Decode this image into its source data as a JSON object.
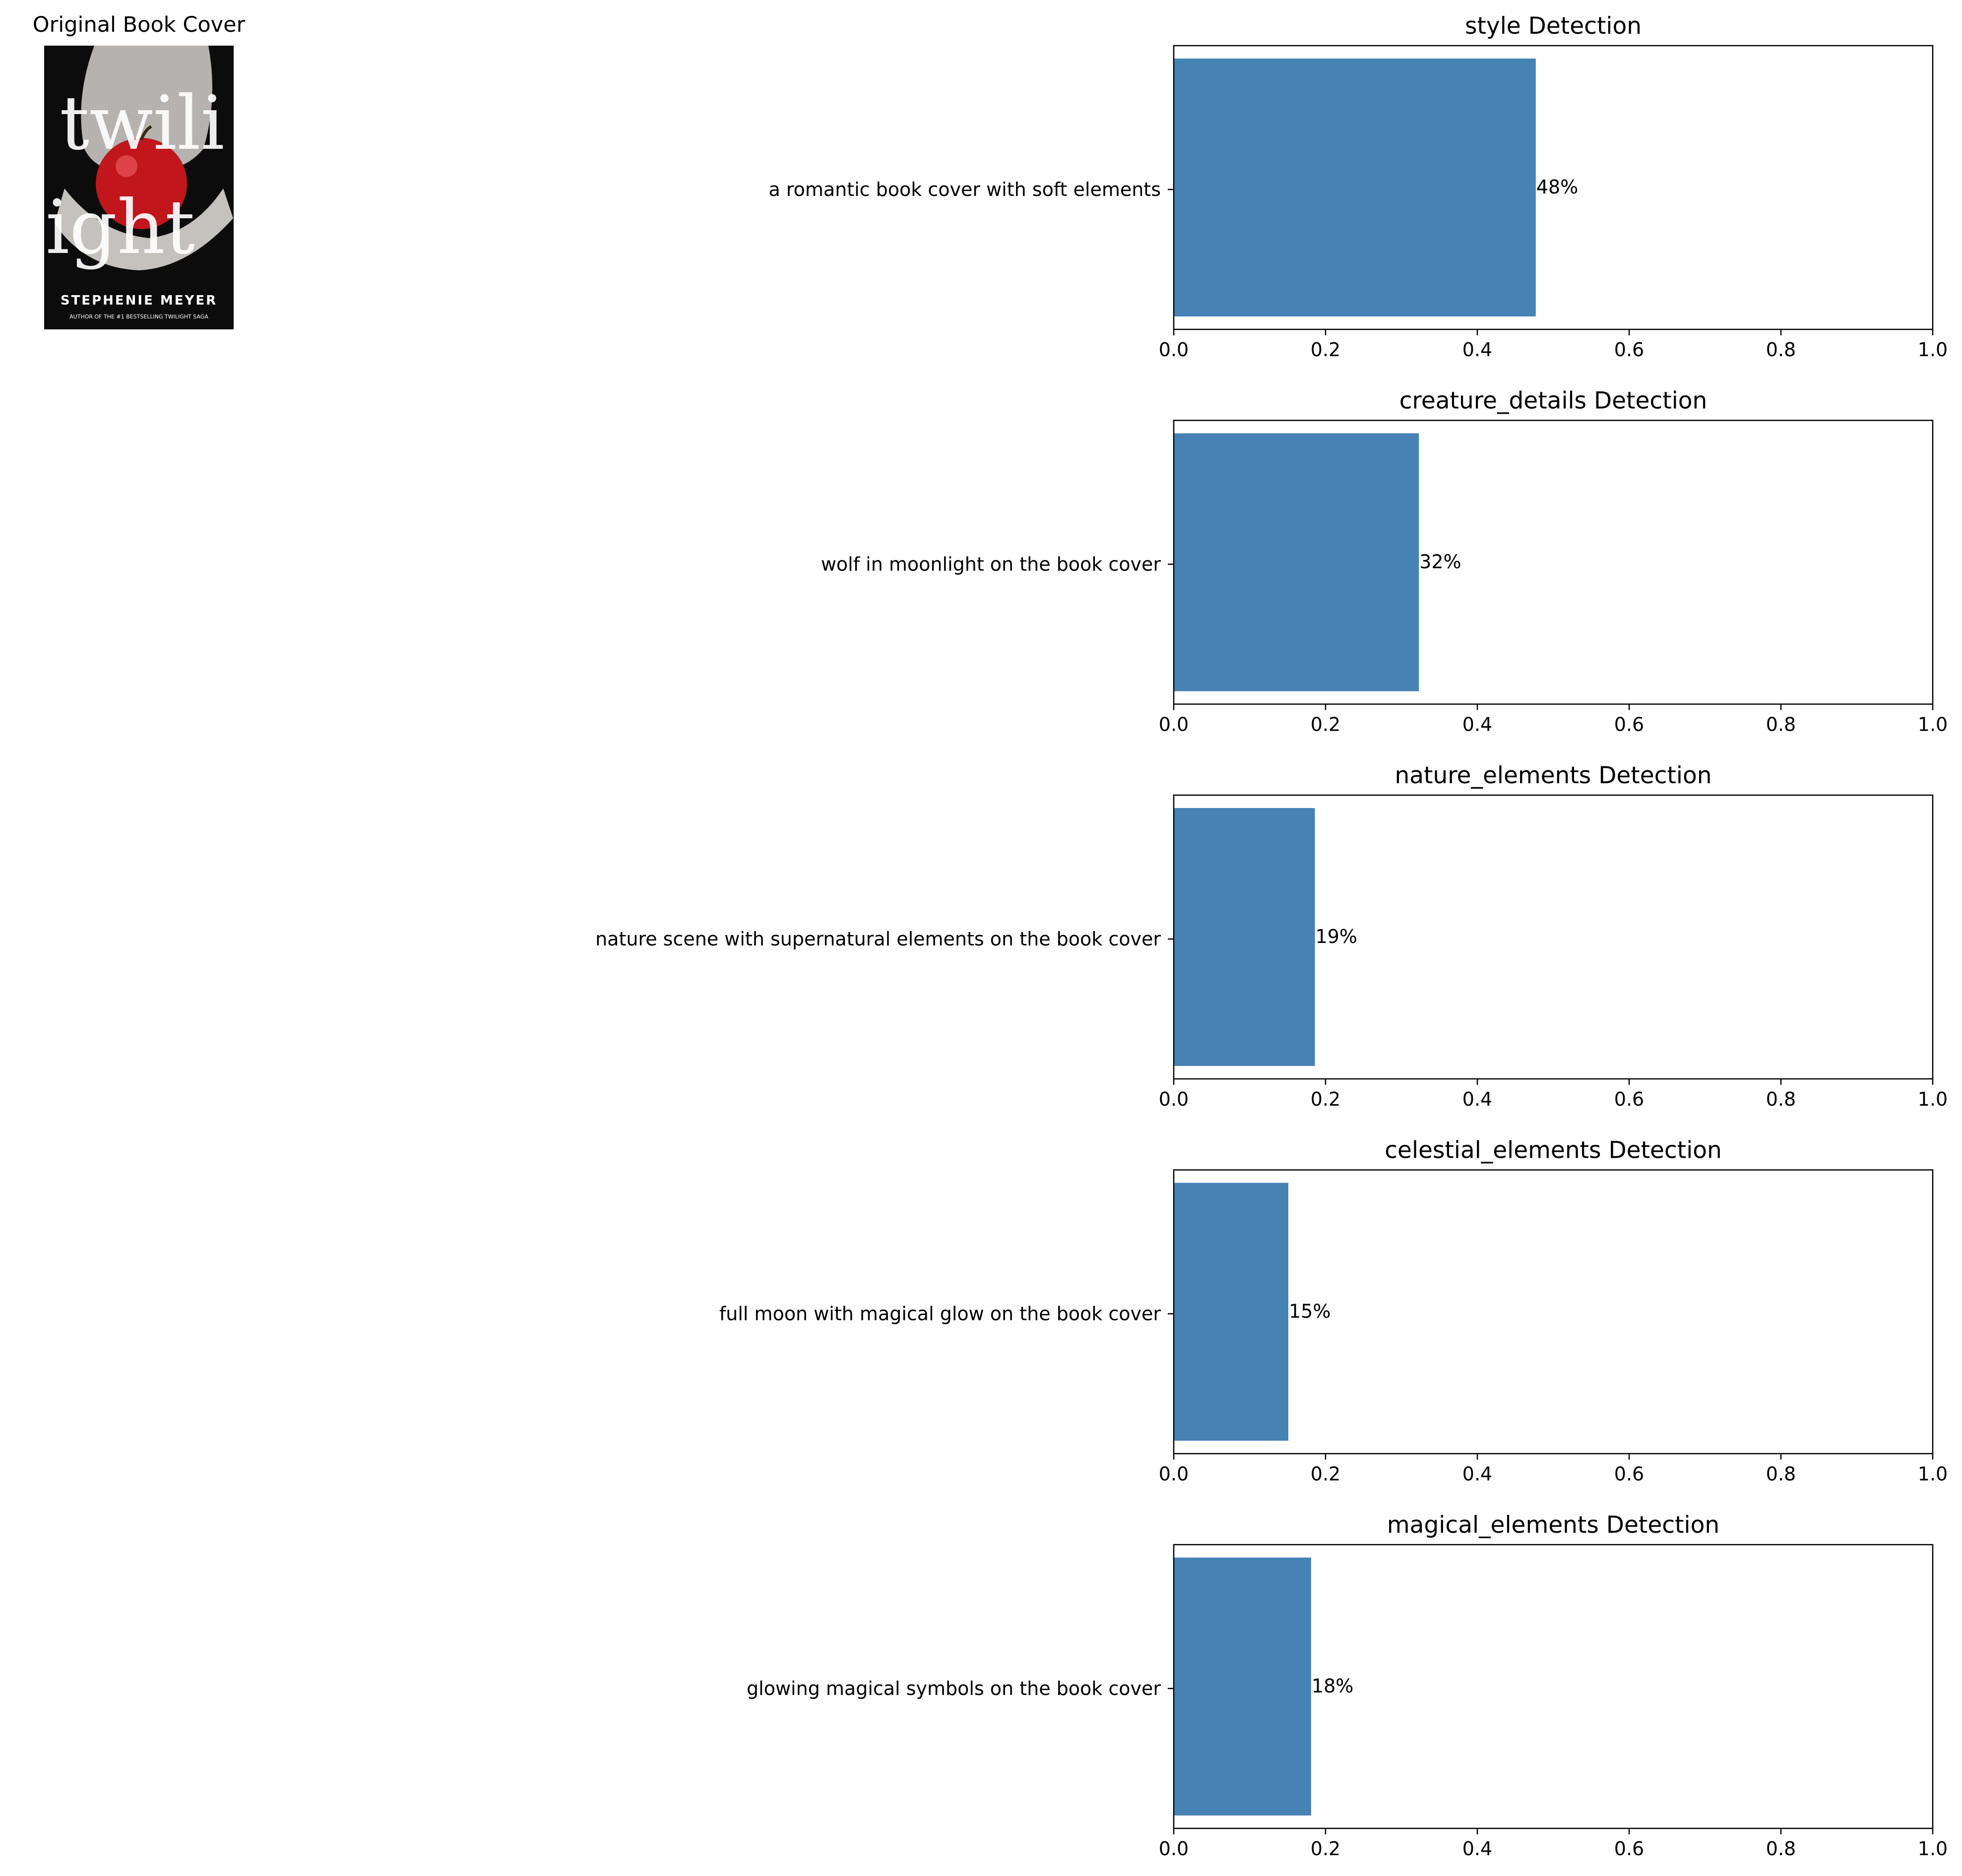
{
  "cover": {
    "title": "Original Book Cover",
    "title_word_top": "twili",
    "title_word_bottom": "ight",
    "author": "STEPHENIE MEYER",
    "tagline": "AUTHOR OF THE #1 BESTSELLING TWILIGHT SAGA",
    "icon": "book-cover-image"
  },
  "chart_data": [
    {
      "type": "bar",
      "orientation": "horizontal",
      "title": "style Detection",
      "categories": [
        "a romantic book cover with soft elements"
      ],
      "values": [
        0.477
      ],
      "value_labels": [
        "48%"
      ],
      "xlim": [
        0,
        1
      ],
      "xticks": [
        "0.0",
        "0.2",
        "0.4",
        "0.6",
        "0.8",
        "1.0"
      ]
    },
    {
      "type": "bar",
      "orientation": "horizontal",
      "title": "creature_details Detection",
      "categories": [
        "wolf in moonlight on the book cover"
      ],
      "values": [
        0.323
      ],
      "value_labels": [
        "32%"
      ],
      "xlim": [
        0,
        1
      ],
      "xticks": [
        "0.0",
        "0.2",
        "0.4",
        "0.6",
        "0.8",
        "1.0"
      ]
    },
    {
      "type": "bar",
      "orientation": "horizontal",
      "title": "nature_elements Detection",
      "categories": [
        "nature scene with supernatural elements on the book cover"
      ],
      "values": [
        0.186
      ],
      "value_labels": [
        "19%"
      ],
      "xlim": [
        0,
        1
      ],
      "xticks": [
        "0.0",
        "0.2",
        "0.4",
        "0.6",
        "0.8",
        "1.0"
      ]
    },
    {
      "type": "bar",
      "orientation": "horizontal",
      "title": "celestial_elements Detection",
      "categories": [
        "full moon with magical glow on the book cover"
      ],
      "values": [
        0.151
      ],
      "value_labels": [
        "15%"
      ],
      "xlim": [
        0,
        1
      ],
      "xticks": [
        "0.0",
        "0.2",
        "0.4",
        "0.6",
        "0.8",
        "1.0"
      ]
    },
    {
      "type": "bar",
      "orientation": "horizontal",
      "title": "magical_elements Detection",
      "categories": [
        "glowing magical symbols on the book cover"
      ],
      "values": [
        0.181
      ],
      "value_labels": [
        "18%"
      ],
      "xlim": [
        0,
        1
      ],
      "xticks": [
        "0.0",
        "0.2",
        "0.4",
        "0.6",
        "0.8",
        "1.0"
      ]
    }
  ],
  "colors": {
    "bar": "#4682b4",
    "axis": "#000000",
    "background": "#ffffff"
  }
}
